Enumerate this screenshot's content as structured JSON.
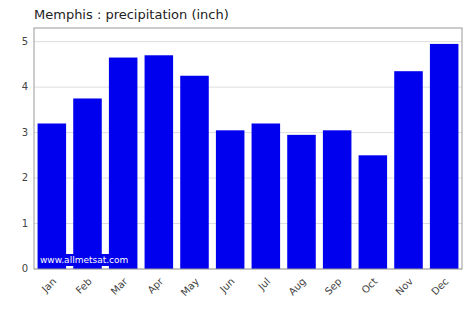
{
  "chart_data": {
    "type": "bar",
    "title": "Memphis : precipitation (inch)",
    "categories": [
      "Jan",
      "Feb",
      "Mar",
      "Apr",
      "May",
      "Jun",
      "Jul",
      "Aug",
      "Sep",
      "Oct",
      "Nov",
      "Dec"
    ],
    "values": [
      3.2,
      3.75,
      4.65,
      4.7,
      4.25,
      3.05,
      3.2,
      2.95,
      3.05,
      2.5,
      4.35,
      4.95
    ],
    "color": "#0000ee",
    "ylim": [
      0,
      5.3
    ],
    "yticks": [
      0,
      1,
      2,
      3,
      4,
      5
    ],
    "grid": true,
    "annotation": "www.allmetsat.com"
  }
}
